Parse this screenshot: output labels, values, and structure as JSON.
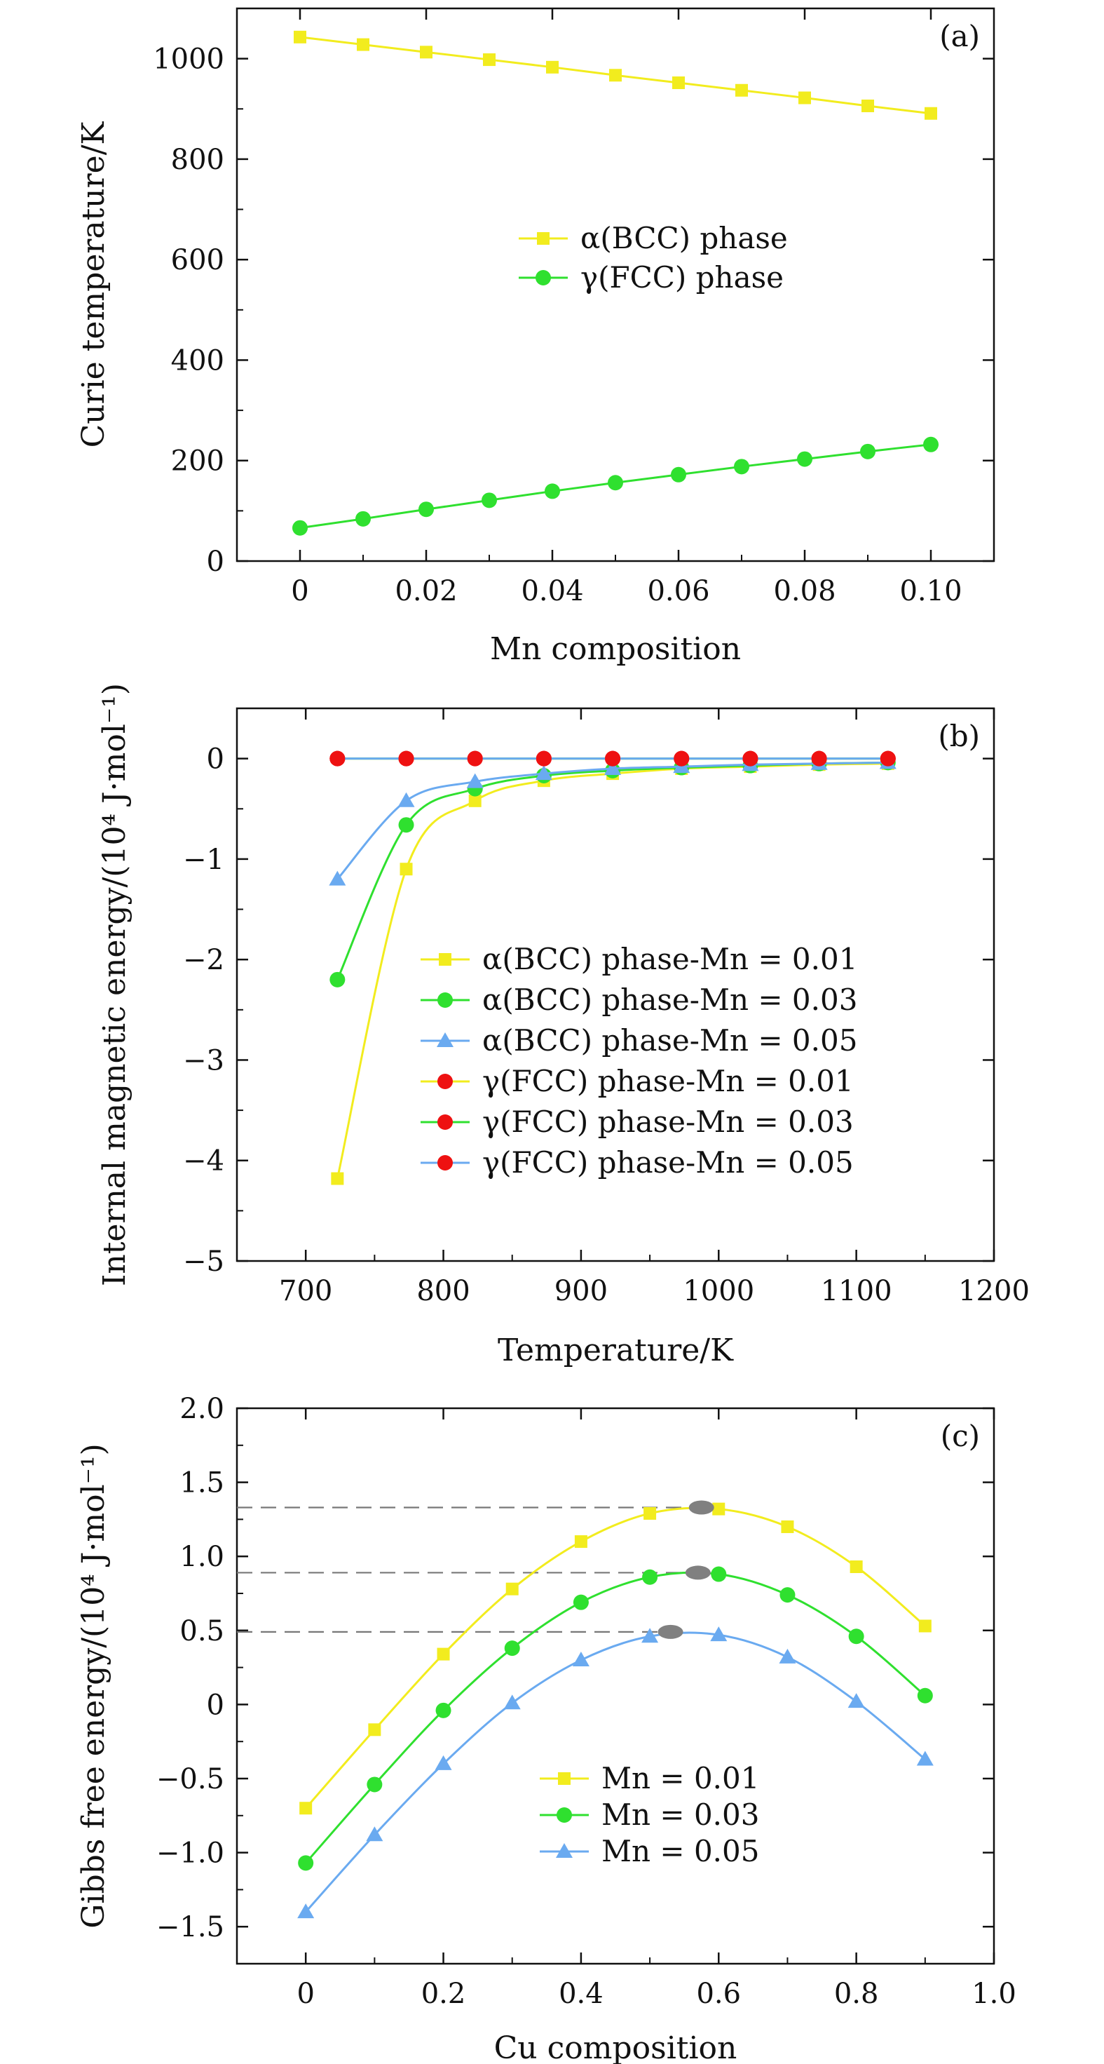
{
  "colors": {
    "yellow": "#f2ec1e",
    "green": "#2fe02f",
    "blue": "#6aaaf0",
    "red": "#ee1111",
    "gray": "#808080",
    "axis": "#111111"
  },
  "chart_data": [
    {
      "type": "line",
      "panel_label": "(a)",
      "xlabel": "Mn composition",
      "ylabel": "Curie temperature/K",
      "xlim": [
        -0.01,
        0.11
      ],
      "ylim": [
        0,
        1100
      ],
      "xticks": [
        0,
        0.02,
        0.04,
        0.06,
        0.08,
        0.1
      ],
      "xtick_labels": [
        "0",
        "0.02",
        "0.04",
        "0.06",
        "0.08",
        "0.10"
      ],
      "yticks": [
        0,
        200,
        400,
        600,
        800,
        1000
      ],
      "ytick_labels": [
        "0",
        "200",
        "400",
        "600",
        "800",
        "1000"
      ],
      "legend_position": "center",
      "x": [
        0,
        0.01,
        0.02,
        0.03,
        0.04,
        0.05,
        0.06,
        0.07,
        0.08,
        0.09,
        0.1
      ],
      "series": [
        {
          "name": "α(BCC) phase",
          "color": "yellow",
          "marker": "square",
          "values": [
            1043,
            1028,
            1013,
            998,
            983,
            967,
            952,
            937,
            922,
            906,
            891
          ]
        },
        {
          "name": "γ(FCC) phase",
          "color": "green",
          "marker": "circle",
          "values": [
            66,
            84,
            103,
            121,
            139,
            156,
            172,
            188,
            203,
            218,
            232
          ]
        }
      ]
    },
    {
      "type": "line",
      "panel_label": "(b)",
      "xlabel": "Temperature/K",
      "ylabel": "Internal magnetic energy/(10⁴ J·mol⁻¹)",
      "xlim": [
        650,
        1200
      ],
      "ylim": [
        -5,
        0.5
      ],
      "xticks": [
        700,
        800,
        900,
        1000,
        1100,
        1200
      ],
      "xtick_labels": [
        "700",
        "800",
        "900",
        "1000",
        "1100",
        "1200"
      ],
      "yticks": [
        -5,
        -4,
        -3,
        -2,
        -1,
        0
      ],
      "ytick_labels": [
        "−5",
        "−4",
        "−3",
        "−2",
        "−1",
        "0"
      ],
      "legend_position": "bottom-right",
      "x": [
        723,
        773,
        823,
        873,
        923,
        973,
        1023,
        1073,
        1123
      ],
      "series": [
        {
          "name": "α(BCC) phase-Mn = 0.01",
          "color": "yellow",
          "marker": "square",
          "marker_color": "yellow",
          "values": [
            -4.18,
            -1.1,
            -0.42,
            -0.22,
            -0.15,
            -0.1,
            -0.08,
            -0.06,
            -0.05
          ]
        },
        {
          "name": "α(BCC) phase-Mn = 0.03",
          "color": "green",
          "marker": "circle",
          "marker_color": "green",
          "values": [
            -2.2,
            -0.66,
            -0.3,
            -0.17,
            -0.12,
            -0.09,
            -0.07,
            -0.05,
            -0.04
          ]
        },
        {
          "name": "α(BCC) phase-Mn = 0.05",
          "color": "blue",
          "marker": "triangle",
          "marker_color": "blue",
          "values": [
            -1.2,
            -0.42,
            -0.23,
            -0.15,
            -0.1,
            -0.08,
            -0.06,
            -0.05,
            -0.04
          ]
        },
        {
          "name": "γ(FCC) phase-Mn = 0.01",
          "color": "yellow",
          "marker": "circle",
          "marker_color": "red",
          "values": [
            0,
            0,
            0,
            0,
            0,
            0,
            0,
            0,
            0
          ]
        },
        {
          "name": "γ(FCC) phase-Mn = 0.03",
          "color": "green",
          "marker": "circle",
          "marker_color": "red",
          "values": [
            0,
            0,
            0,
            0,
            0,
            0,
            0,
            0,
            0
          ]
        },
        {
          "name": "γ(FCC) phase-Mn = 0.05",
          "color": "blue",
          "marker": "circle",
          "marker_color": "red",
          "values": [
            0,
            0,
            0,
            0,
            0,
            0,
            0,
            0,
            0
          ]
        }
      ]
    },
    {
      "type": "line",
      "panel_label": "(c)",
      "xlabel": "Cu composition",
      "ylabel": "Gibbs free energy/(10⁴ J·mol⁻¹)",
      "xlim": [
        -0.1,
        1.0
      ],
      "ylim": [
        -1.75,
        2.0
      ],
      "xticks": [
        0,
        0.2,
        0.4,
        0.6,
        0.8,
        1.0
      ],
      "xtick_labels": [
        "0",
        "0.2",
        "0.4",
        "0.6",
        "0.8",
        "1.0"
      ],
      "yticks": [
        -1.5,
        -1.0,
        -0.5,
        0,
        0.5,
        1.0,
        1.5,
        2.0
      ],
      "ytick_labels": [
        "−1.5",
        "−1.0",
        "−0.5",
        "0",
        "0.5",
        "1.0",
        "1.5",
        "2.0"
      ],
      "legend_position": "bottom-center",
      "x": [
        0,
        0.1,
        0.2,
        0.3,
        0.4,
        0.5,
        0.6,
        0.7,
        0.8,
        0.9
      ],
      "series": [
        {
          "name": "Mn = 0.01",
          "color": "yellow",
          "marker": "square",
          "values": [
            -0.7,
            -0.17,
            0.34,
            0.78,
            1.1,
            1.29,
            1.32,
            1.2,
            0.93,
            0.53
          ]
        },
        {
          "name": "Mn = 0.03",
          "color": "green",
          "marker": "circle",
          "values": [
            -1.07,
            -0.54,
            -0.04,
            0.38,
            0.69,
            0.86,
            0.88,
            0.74,
            0.46,
            0.06
          ]
        },
        {
          "name": "Mn = 0.05",
          "color": "blue",
          "marker": "triangle",
          "values": [
            -1.4,
            -0.88,
            -0.4,
            0.01,
            0.3,
            0.46,
            0.47,
            0.32,
            0.02,
            -0.37
          ]
        }
      ],
      "maxima": [
        {
          "x": 0.575,
          "y": 1.33
        },
        {
          "x": 0.57,
          "y": 0.89
        },
        {
          "x": 0.53,
          "y": 0.49
        }
      ]
    }
  ]
}
